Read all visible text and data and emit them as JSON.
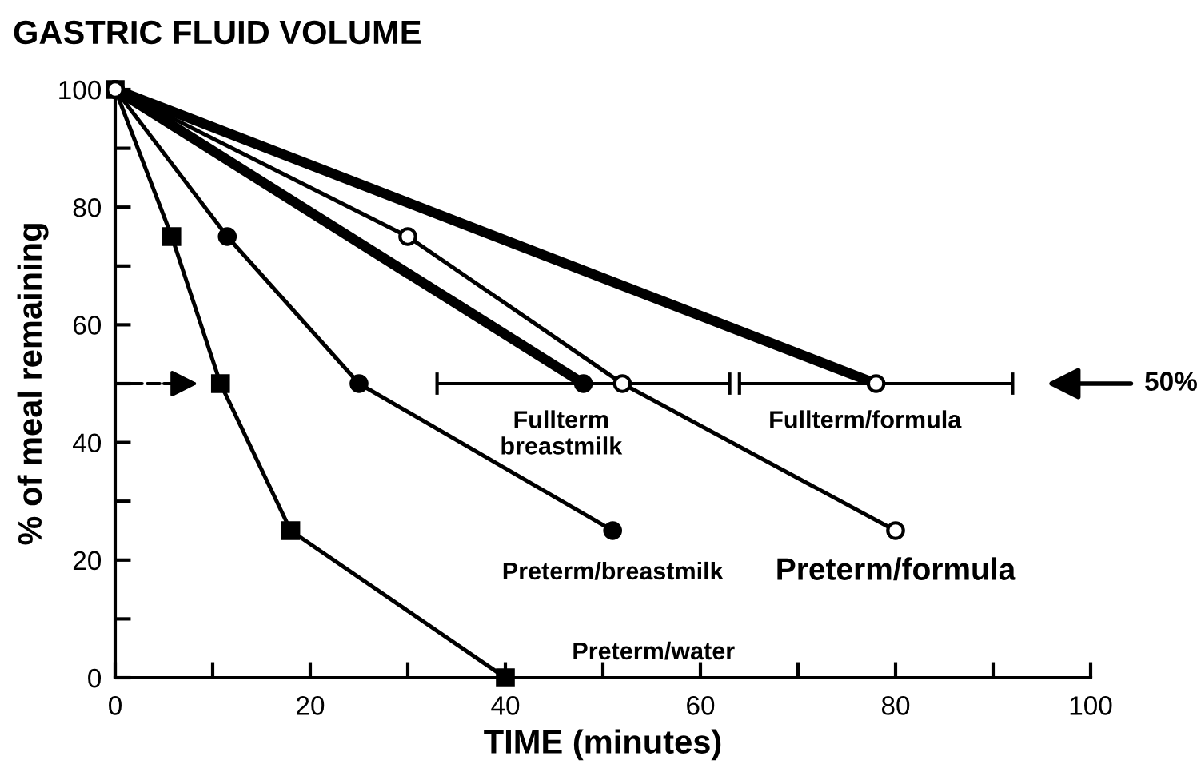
{
  "chart_data": {
    "type": "line",
    "title": "GASTRIC FLUID VOLUME",
    "xlabel": "TIME (minutes)",
    "ylabel": "% of meal remaining",
    "xlim": [
      0,
      100
    ],
    "ylim": [
      0,
      100
    ],
    "xticks": [
      0,
      {
        "value": 10,
        "label": null
      },
      20,
      {
        "value": 30,
        "label": null
      },
      40,
      {
        "value": 50,
        "label": null
      },
      60,
      {
        "value": 70,
        "label": null
      },
      80,
      {
        "value": 90,
        "label": null
      },
      100
    ],
    "yticks": [
      0,
      {
        "value": 10,
        "label": null
      },
      20,
      {
        "value": 30,
        "label": null
      },
      40,
      {
        "value": 50,
        "label": null
      },
      60,
      {
        "value": 70,
        "label": null
      },
      80,
      {
        "value": 90,
        "label": null
      },
      100
    ],
    "grid": false,
    "legend": false,
    "line_style": "solid",
    "series": [
      {
        "name": "Preterm/water",
        "color": "#000000",
        "marker": "square",
        "x": [
          0,
          5.8,
          10.8,
          18,
          40
        ],
        "values": [
          100,
          75,
          50,
          25,
          0
        ]
      },
      {
        "name": "Preterm/breastmilk",
        "color": "#000000",
        "marker": "circle",
        "x": [
          0,
          11.5,
          25,
          51
        ],
        "values": [
          100,
          75,
          50,
          25
        ]
      },
      {
        "name": "Fullterm breastmilk",
        "color": "#000000",
        "marker": "circle",
        "x": [
          0,
          48
        ],
        "values": [
          100,
          50
        ],
        "xerrors": [
          null,
          [
            33,
            63
          ]
        ]
      },
      {
        "name": "Preterm/formula",
        "color": "#000000",
        "marker": "circle",
        "x": [
          0,
          30,
          52,
          80
        ],
        "values": [
          100,
          75,
          50,
          25
        ]
      },
      {
        "name": "Fullterm/formula",
        "color": "#000000",
        "marker": "circle",
        "x": [
          0,
          78
        ],
        "values": [
          100,
          50
        ],
        "xerrors": [
          null,
          [
            64,
            92
          ]
        ]
      }
    ],
    "annotations": [
      "50%"
    ]
  }
}
